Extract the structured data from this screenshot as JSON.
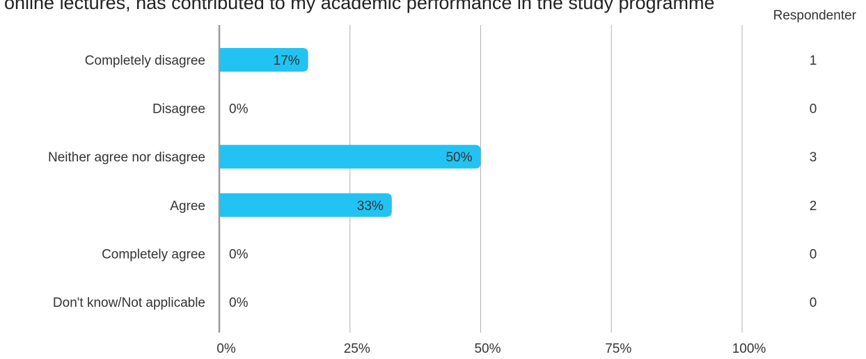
{
  "chart_data": {
    "type": "bar",
    "orientation": "horizontal",
    "title": "online lectures, has contributed to my academic performance in the study programme",
    "categories": [
      "Completely disagree",
      "Disagree",
      "Neither agree nor disagree",
      "Agree",
      "Completely agree",
      "Don't know/Not applicable"
    ],
    "values": [
      17,
      0,
      50,
      33,
      0,
      0
    ],
    "data_labels": [
      "17%",
      "0%",
      "50%",
      "33%",
      "0%",
      "0%"
    ],
    "x_ticks": [
      "0%",
      "25%",
      "50%",
      "75%",
      "100%"
    ],
    "xlim": [
      0,
      100
    ],
    "grid": true,
    "respondents_label": "Respondenter",
    "respondents": [
      "1",
      "0",
      "3",
      "2",
      "0",
      "0"
    ],
    "colors": {
      "bar": "#22c3f3",
      "grid": "#b0b0b0",
      "axis": "#999999",
      "text": "#333333"
    }
  }
}
